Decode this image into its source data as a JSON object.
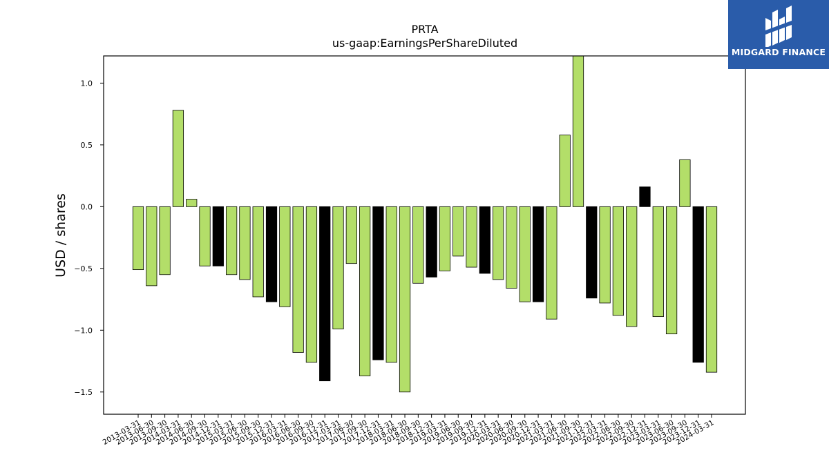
{
  "logo": {
    "text": "MIDGARD FINANCE",
    "icon": "midgard-logo-icon",
    "bg_color": "#2a5caa"
  },
  "chart_data": {
    "type": "bar",
    "title": "PRTA",
    "subtitle": "us-gaap:EarningsPerShareDiluted",
    "xlabel": "",
    "ylabel": "USD / shares",
    "ylim": [
      -1.68,
      1.22
    ],
    "yticks": [
      -1.5,
      -1.0,
      -0.5,
      0.0,
      0.5,
      1.0
    ],
    "ytick_labels": [
      "−1.5",
      "−1.0",
      "−0.5",
      "0.0",
      "0.5",
      "1.0"
    ],
    "grid": false,
    "legend": "none",
    "colors": {
      "default": "#b3de69",
      "highlight": "#000000",
      "edge": "#000000"
    },
    "categories": [
      "2013-03-31",
      "2013-06-30",
      "2013-09-30",
      "2014-03-31",
      "2014-06-30",
      "2014-09-30",
      "2014-12-31",
      "2015-03-31",
      "2015-06-30",
      "2015-09-30",
      "2015-12-31",
      "2016-03-31",
      "2016-06-30",
      "2016-09-30",
      "2016-12-31",
      "2017-03-31",
      "2017-06-30",
      "2017-09-30",
      "2017-12-31",
      "2018-03-31",
      "2018-06-30",
      "2018-09-30",
      "2018-12-31",
      "2019-03-31",
      "2019-06-30",
      "2019-09-30",
      "2019-12-31",
      "2020-03-31",
      "2020-06-30",
      "2020-09-30",
      "2020-12-31",
      "2021-03-31",
      "2021-06-30",
      "2021-09-30",
      "2021-12-31",
      "2022-03-31",
      "2022-06-30",
      "2022-09-30",
      "2022-12-31",
      "2023-03-31",
      "2023-06-30",
      "2023-09-30",
      "2023-12-31",
      "2024-03-31"
    ],
    "bar_labels_shown": [
      "2013-03-31",
      "2013-06-30",
      "2013-09-30",
      "2014-03-31",
      "2014-06-30",
      "2014-09-30",
      "2014-12-31",
      "2015-03-31",
      "2015-06-30",
      "2015-09-30",
      "2015-12-31",
      "2016-03-31",
      "2016-06-30",
      "2016-09-30",
      "2016-12-31",
      "2017-03-31",
      "2017-06-30",
      "2017-09-30",
      "2017-12-31",
      "2018-03-31",
      "2018-06-30",
      "2018-09-30",
      "2018-12-31",
      "2019-03-31",
      "2019-06-30",
      "2019-09-30",
      "2019-12-31",
      "2020-03-31",
      "2020-06-30",
      "2020-09-30",
      "2020-12-31",
      "2021-03-31",
      "2021-06-30",
      "2021-09-30",
      "2021-12-31",
      "2022-03-31",
      "2022-06-30",
      "2022-09-30",
      "2022-12-31",
      "2023-03-31",
      "2023-06-30",
      "2023-09-30",
      "2023-12-31",
      "2024-03-31"
    ],
    "values": [
      -0.51,
      -0.64,
      -0.55,
      0.78,
      0.06,
      -0.48,
      -0.48,
      -0.55,
      -0.59,
      -0.73,
      -0.77,
      -0.81,
      -1.18,
      -1.26,
      -1.41,
      -0.99,
      -0.46,
      -1.37,
      -1.24,
      -1.26,
      -1.5,
      -0.62,
      -0.57,
      -0.52,
      -0.4,
      -0.49,
      -0.54,
      -0.59,
      -0.66,
      -0.77,
      -0.77,
      -0.91,
      0.58,
      1.23,
      -0.74,
      -0.78,
      -0.88,
      -0.97,
      0.16,
      -0.89,
      -1.03,
      0.38,
      -1.26,
      -1.34
    ],
    "highlight": [
      false,
      false,
      false,
      false,
      false,
      false,
      true,
      false,
      false,
      false,
      true,
      false,
      false,
      false,
      true,
      false,
      false,
      false,
      true,
      false,
      false,
      false,
      true,
      false,
      false,
      false,
      true,
      false,
      false,
      false,
      true,
      false,
      false,
      false,
      true,
      false,
      false,
      false,
      true,
      false,
      false,
      false,
      true,
      false
    ]
  }
}
